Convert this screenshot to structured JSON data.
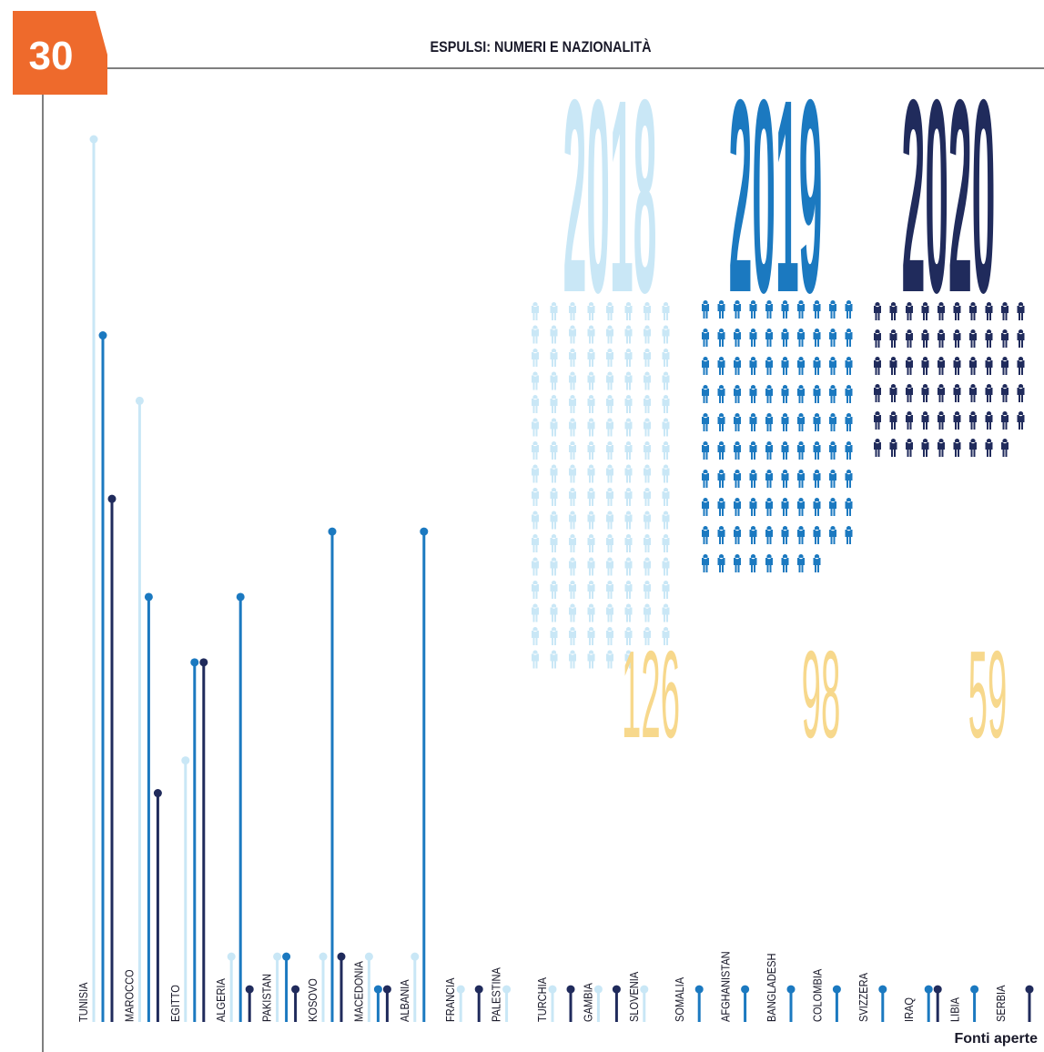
{
  "chart_data": {
    "type": "lollipop",
    "badge": "30",
    "title": "ESPULSI: NUMERI E NAZIONALITÀ",
    "source": "Fonti aperte",
    "categories": [
      "TUNISIA",
      "MAROCCO",
      "EGITTO",
      "ALGERIA",
      "PAKISTAN",
      "KOSOVO",
      "MACEDONIA",
      "ALBANIA",
      "FRANCIA",
      "PALESTINA",
      "TURCHIA",
      "GAMBIA",
      "SLOVENIA",
      "SOMALIA",
      "AFGHANISTAN",
      "BANGLADESH",
      "COLOMBIA",
      "SVIZZERA",
      "IRAQ",
      "LIBIA",
      "SERBIA"
    ],
    "ylim": [
      0,
      27
    ],
    "series": [
      {
        "name": "2018",
        "color": "#c9e7f6",
        "total": 126,
        "values": [
          27,
          19,
          8,
          2,
          2,
          2,
          2,
          2,
          1,
          1,
          1,
          1,
          1,
          null,
          null,
          null,
          null,
          null,
          null,
          null,
          null
        ]
      },
      {
        "name": "2019",
        "color": "#1b79c0",
        "total": 98,
        "values": [
          21,
          13,
          11,
          13,
          2,
          15,
          1,
          15,
          null,
          null,
          null,
          null,
          null,
          1,
          1,
          1,
          1,
          1,
          1,
          1,
          null
        ]
      },
      {
        "name": "2020",
        "color": "#202b5c",
        "total": 59,
        "values": [
          16,
          7,
          11,
          1,
          1,
          2,
          1,
          null,
          1,
          null,
          1,
          1,
          null,
          null,
          null,
          null,
          null,
          null,
          1,
          null,
          1
        ]
      }
    ]
  }
}
